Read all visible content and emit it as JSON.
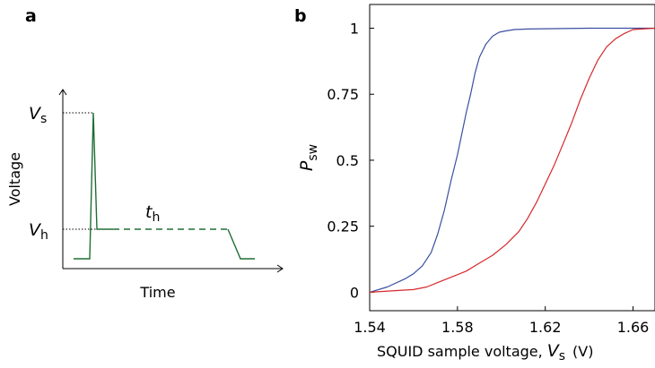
{
  "chart_data": [
    {
      "panel": "a",
      "type": "line",
      "title": "",
      "xlabel": "Time",
      "ylabel": "Voltage",
      "y_tick_labels": [
        {
          "symbol": "V",
          "sub": "s"
        },
        {
          "symbol": "V",
          "sub": "h"
        }
      ],
      "annotation": {
        "symbol": "t",
        "sub": "h"
      },
      "colors": {
        "pulse": "#1e6e33",
        "axis": "#000000"
      },
      "grid": false,
      "legend": "none"
    },
    {
      "panel": "b",
      "type": "line",
      "title": "",
      "xlabel": "SQUID sample voltage,",
      "xlabel_symbol": {
        "symbol": "V",
        "sub": "s"
      },
      "xlabel_unit": "(V)",
      "ylabel": {
        "symbol": "P",
        "sub": "sw"
      },
      "xlim": [
        1.54,
        1.67
      ],
      "ylim": [
        -0.07,
        1.09
      ],
      "x_ticks": [
        1.54,
        1.58,
        1.62,
        1.66
      ],
      "x_tick_labels": [
        "1.54",
        "1.58",
        "1.62",
        "1.66"
      ],
      "y_ticks": [
        0,
        0.25,
        0.5,
        0.75,
        1
      ],
      "y_tick_labels": [
        "0",
        "0.25",
        "0.5",
        "0.75",
        "1"
      ],
      "grid": false,
      "legend": "none",
      "series": [
        {
          "color": "#3a4fa0",
          "x": [
            1.54,
            1.548,
            1.556,
            1.56,
            1.564,
            1.568,
            1.571,
            1.574,
            1.577,
            1.58,
            1.582,
            1.584,
            1.586,
            1.588,
            1.59,
            1.593,
            1.596,
            1.599,
            1.602,
            1.606,
            1.612,
            1.62,
            1.64,
            1.67
          ],
          "y": [
            0.0,
            0.02,
            0.05,
            0.07,
            0.1,
            0.15,
            0.22,
            0.31,
            0.42,
            0.52,
            0.6,
            0.68,
            0.75,
            0.83,
            0.89,
            0.94,
            0.97,
            0.985,
            0.99,
            0.995,
            0.997,
            0.998,
            1.0,
            1.0
          ]
        },
        {
          "color": "#d6282b",
          "x": [
            1.54,
            1.55,
            1.56,
            1.566,
            1.572,
            1.578,
            1.584,
            1.59,
            1.596,
            1.602,
            1.608,
            1.612,
            1.616,
            1.62,
            1.624,
            1.628,
            1.632,
            1.636,
            1.64,
            1.644,
            1.648,
            1.652,
            1.656,
            1.66,
            1.67
          ],
          "y": [
            0.0,
            0.005,
            0.01,
            0.02,
            0.04,
            0.06,
            0.08,
            0.11,
            0.14,
            0.18,
            0.23,
            0.28,
            0.34,
            0.41,
            0.48,
            0.56,
            0.64,
            0.73,
            0.81,
            0.88,
            0.93,
            0.96,
            0.98,
            0.995,
            1.0
          ]
        }
      ]
    }
  ]
}
